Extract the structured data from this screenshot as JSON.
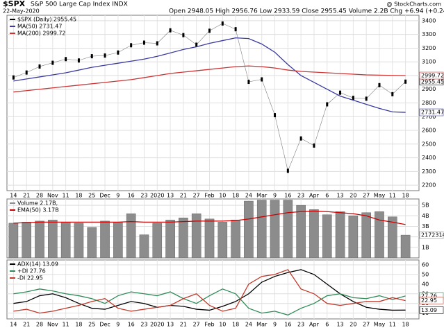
{
  "chart_data": [
    {
      "type": "price",
      "title": "$SPX",
      "subtitle": "S&P 500 Large Cap Index INDX",
      "date": "22-May-2020",
      "quote": "Open 2948.05 High 2956.76 Low 2933.59 Close 2955.45 Volume 2.2B Chg +6.94 (+0.24%)",
      "source": "@ StockCharts.com",
      "categories": [
        "14",
        "21",
        "28",
        "Nov",
        "11",
        "18",
        "25",
        "Dec",
        "9",
        "16",
        "23",
        "2020",
        "13",
        "21",
        "27",
        "Feb",
        "10",
        "18",
        "24",
        "Mar",
        "9",
        "16",
        "23",
        "Apr",
        "6",
        "13",
        "20",
        "27",
        "May",
        "11",
        "18"
      ],
      "ylim": [
        2160,
        3440
      ],
      "yticks": [
        2200,
        2300,
        2400,
        2500,
        2600,
        2700,
        2800,
        2900,
        3000,
        3100,
        3200,
        3300,
        3400
      ],
      "grid": true,
      "series": [
        {
          "name": "$SPX (Daily) 2955.45",
          "kind": "markers",
          "color": "#000000",
          "end_label": "2955.45",
          "values": [
            2986,
            3022,
            3066,
            3093,
            3120,
            3110,
            3141,
            3146,
            3168,
            3221,
            3240,
            3235,
            3330,
            3295,
            3225,
            3327,
            3380,
            3338,
            2954,
            2972,
            2711,
            2305,
            2541,
            2489,
            2790,
            2875,
            2837,
            2831,
            2930,
            2864,
            2955.45
          ]
        },
        {
          "name": "MA(50) 2731.47",
          "kind": "line",
          "color": "#3a3aa0",
          "end_label": "2731.47",
          "values": [
            2960,
            2975,
            2990,
            3005,
            3020,
            3040,
            3060,
            3075,
            3090,
            3105,
            3120,
            3140,
            3165,
            3190,
            3210,
            3235,
            3255,
            3275,
            3270,
            3230,
            3170,
            3080,
            3000,
            2950,
            2900,
            2850,
            2820,
            2790,
            2760,
            2735,
            2731.47
          ]
        },
        {
          "name": "MA(200) 2999.72",
          "kind": "line",
          "color": "#cc3333",
          "end_label": "2999.72",
          "values": [
            2880,
            2890,
            2900,
            2910,
            2920,
            2930,
            2940,
            2950,
            2960,
            2970,
            2985,
            3000,
            3015,
            3025,
            3035,
            3045,
            3055,
            3065,
            3070,
            3065,
            3055,
            3040,
            3030,
            3025,
            3020,
            3015,
            3010,
            3005,
            3003,
            3001,
            2999.72
          ]
        }
      ]
    },
    {
      "type": "volume",
      "ylim": [
        0,
        5.6
      ],
      "yticks": [
        {
          "value": 1,
          "label": "1B"
        },
        {
          "value": 2,
          "label": "2B"
        },
        {
          "value": 3,
          "label": "3B"
        },
        {
          "value": 4,
          "label": "4B"
        },
        {
          "value": 5,
          "label": "5B"
        }
      ],
      "grid": true,
      "series": [
        {
          "name": "Volume 2.17B,",
          "kind": "bar",
          "color": "#8c8c8c",
          "end_label": "2172314",
          "values": [
            3.3,
            3.4,
            3.5,
            3.6,
            3.4,
            3.3,
            2.9,
            3.5,
            3.4,
            4.2,
            2.2,
            3.3,
            3.6,
            3.8,
            4.2,
            3.7,
            3.4,
            3.6,
            5.4,
            5.5,
            5.5,
            5.5,
            5.0,
            4.6,
            4.1,
            4.4,
            4.0,
            4.3,
            4.4,
            3.9,
            2.17
          ]
        },
        {
          "name": "EMA(50) 3.17B",
          "kind": "line",
          "color": "#cc0000",
          "values": [
            3.3,
            3.35,
            3.4,
            3.4,
            3.4,
            3.4,
            3.4,
            3.4,
            3.4,
            3.45,
            3.4,
            3.4,
            3.4,
            3.45,
            3.5,
            3.5,
            3.5,
            3.55,
            3.7,
            3.9,
            4.1,
            4.3,
            4.4,
            4.45,
            4.4,
            4.3,
            4.2,
            4.0,
            3.6,
            3.4,
            3.17
          ]
        }
      ]
    },
    {
      "type": "adx",
      "categories": [
        "14",
        "21",
        "28",
        "Nov",
        "11",
        "18",
        "25",
        "Dec",
        "9",
        "16",
        "23",
        "2020",
        "13",
        "21",
        "27",
        "Feb",
        "10",
        "18",
        "24",
        "Mar",
        "9",
        "16",
        "23",
        "Apr",
        "6",
        "13",
        "20",
        "27",
        "May",
        "11",
        "18"
      ],
      "ylim": [
        4,
        65
      ],
      "yticks": [
        10,
        20,
        30,
        40,
        50,
        60
      ],
      "grid": true,
      "series": [
        {
          "name": "ADX(14) 13.09",
          "kind": "line",
          "color": "#000000",
          "end_label": "13.09",
          "values": [
            20,
            22,
            28,
            30,
            26,
            20,
            15,
            14,
            18,
            22,
            20,
            16,
            18,
            17,
            14,
            13,
            17,
            22,
            30,
            42,
            48,
            52,
            55,
            50,
            40,
            30,
            22,
            16,
            14,
            13,
            13.09
          ]
        },
        {
          "name": "+DI 27.76",
          "kind": "line",
          "color": "#2e8b57",
          "end_label": "27.76",
          "values": [
            30,
            32,
            35,
            33,
            30,
            28,
            25,
            20,
            28,
            32,
            30,
            28,
            32,
            25,
            20,
            28,
            35,
            30,
            15,
            10,
            12,
            8,
            15,
            20,
            28,
            30,
            26,
            25,
            28,
            24,
            27.76
          ]
        },
        {
          "name": "-DI 22.95",
          "kind": "line",
          "color": "#c0392b",
          "end_label": "22.95",
          "values": [
            12,
            14,
            10,
            12,
            15,
            18,
            22,
            25,
            15,
            12,
            14,
            16,
            18,
            25,
            30,
            18,
            12,
            15,
            40,
            48,
            50,
            55,
            35,
            30,
            20,
            18,
            20,
            22,
            22,
            26,
            22.95
          ]
        }
      ]
    }
  ]
}
